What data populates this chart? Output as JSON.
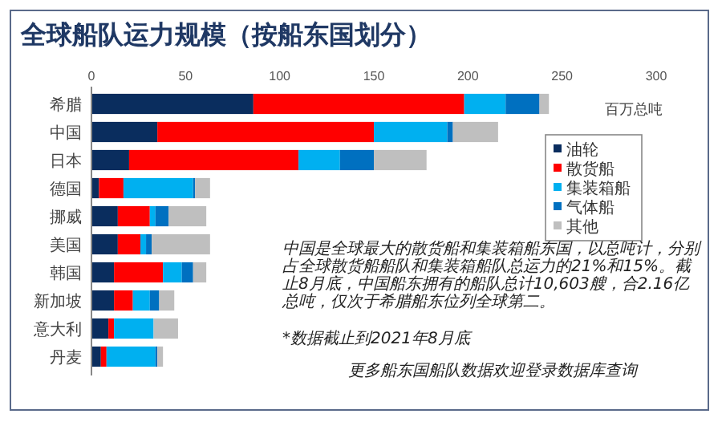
{
  "chart_data": {
    "type": "bar",
    "orientation": "horizontal",
    "stacked": true,
    "title": "全球船队运力规模（按船东国划分）",
    "xlabel": "百万总吨",
    "categories": [
      "希腊",
      "中国",
      "日本",
      "德国",
      "挪威",
      "美国",
      "韩国",
      "新加坡",
      "意大利",
      "丹麦"
    ],
    "series": [
      {
        "name": "油轮",
        "color": "#0a2d5e",
        "values": [
          86,
          35,
          20,
          4,
          14,
          14,
          12,
          12,
          9,
          5
        ]
      },
      {
        "name": "散货船",
        "color": "#ff0000",
        "values": [
          112,
          115,
          90,
          13,
          17,
          12,
          26,
          10,
          3,
          3
        ]
      },
      {
        "name": "集装箱船",
        "color": "#00b0f0",
        "values": [
          22,
          39,
          22,
          37,
          3,
          3,
          10,
          9,
          21,
          26
        ]
      },
      {
        "name": "气体船",
        "color": "#0070c0",
        "values": [
          18,
          3,
          18,
          1,
          7,
          3,
          6,
          5,
          0,
          1
        ]
      },
      {
        "name": "其他",
        "color": "#bfbfbf",
        "values": [
          5,
          24,
          28,
          8,
          20,
          31,
          7,
          8,
          13,
          3
        ]
      }
    ],
    "xlim": [
      0,
      300
    ],
    "xticks": [
      0,
      50,
      100,
      150,
      200,
      250,
      300
    ],
    "legend": "right",
    "grid": false,
    "annotations": [
      "中国是全球最大的散货船和集装箱船东国，以总吨计，分别占全球散货船船队和集装箱船队总运力的21%和15%。截止8月底，中国船东拥有的船队总计10,603艘，合2.16亿总吨，仅次于希腊船东位列全球第二。",
      "*数据截止到2021年8月底",
      "更多船东国船队数据欢迎登录数据库查询"
    ]
  }
}
